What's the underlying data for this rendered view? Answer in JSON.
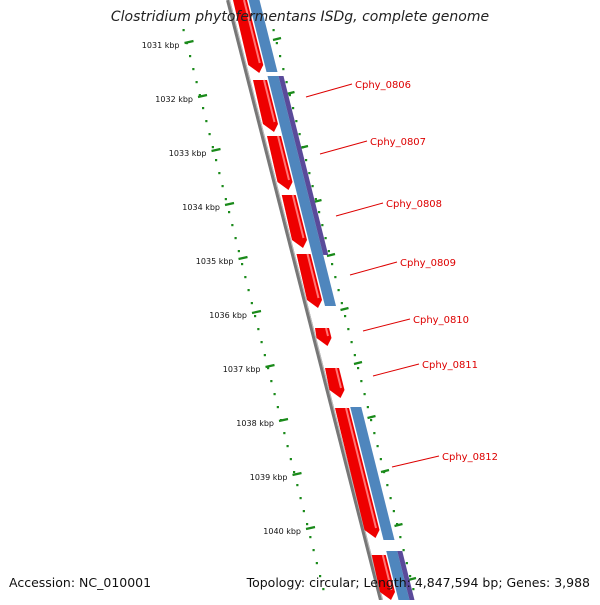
{
  "title": "Clostridium phytofermentans ISDg, complete genome",
  "footer": {
    "accession_label": "Accession:",
    "accession": "NC_010001",
    "topology_label": "Topology:",
    "topology": "circular",
    "length_label": "Length:",
    "length": "4,847,594 bp",
    "genes_label": "Genes:",
    "genes": "3,988"
  },
  "kbp_ticks": [
    "1031 kbp",
    "1032 kbp",
    "1033 kbp",
    "1034 kbp",
    "1035 kbp",
    "1036 kbp",
    "1037 kbp",
    "1038 kbp",
    "1039 kbp",
    "1040 kbp"
  ],
  "gene_labels": [
    "Cphy_0806",
    "Cphy_0807",
    "Cphy_0808",
    "Cphy_0809",
    "Cphy_0810",
    "Cphy_0811",
    "Cphy_0812"
  ],
  "colors": {
    "cds": "#ee0000",
    "blue_track": "#4f86bd",
    "purple_track": "#5a4a9a",
    "backbone": "#777777",
    "scale": "#1a8a1a",
    "label": "#dd0000"
  }
}
